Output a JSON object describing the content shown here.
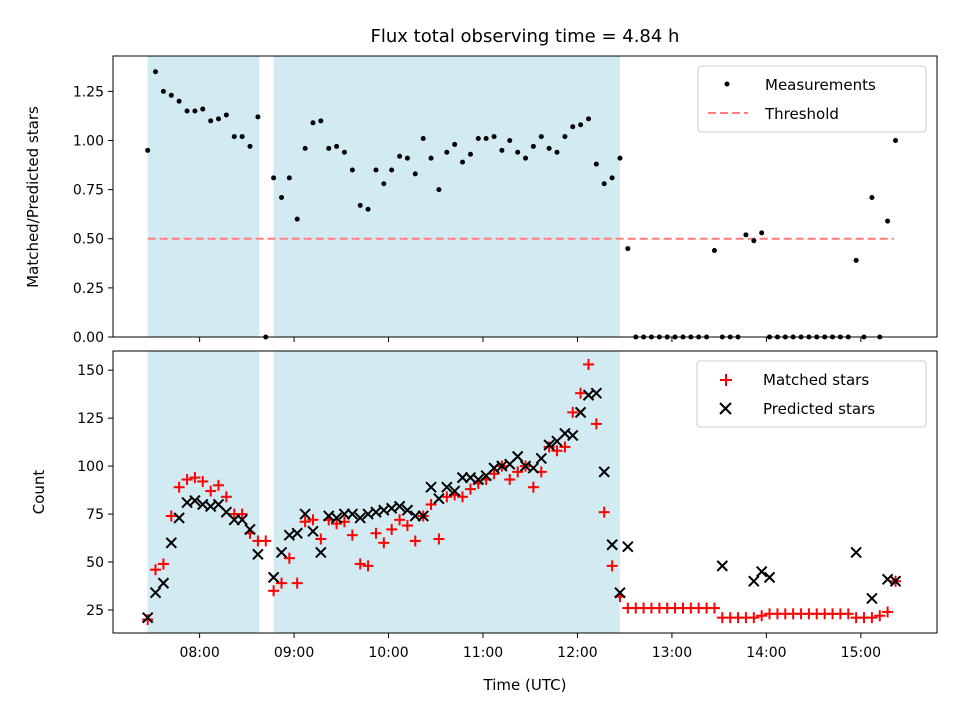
{
  "chart_data": [
    {
      "type": "scatter",
      "title": "Flux total observing time = 4.84 h",
      "xlabel": "",
      "ylabel": "Matched/Predicted stars",
      "xlim_hours": [
        7.083,
        15.806
      ],
      "ylim": [
        0,
        1.43
      ],
      "yticks": [
        0,
        0.25,
        0.5,
        0.75,
        1.0,
        1.25
      ],
      "ytick_labels": [
        "0.00",
        "0.25",
        "0.50",
        "0.75",
        "1.00",
        "1.25"
      ],
      "observing_intervals_hours": [
        [
          7.45,
          8.633
        ],
        [
          8.783,
          12.45
        ]
      ],
      "shade_color": "#add8e6",
      "threshold": {
        "label": "Threshold",
        "value": 0.5,
        "x_range_hours": [
          7.45,
          15.35
        ],
        "color": "#ff7f7f"
      },
      "legend": {
        "position": "top-right",
        "entries": [
          "Measurements",
          "Threshold"
        ]
      },
      "series": [
        {
          "name": "Measurements",
          "marker": "dot",
          "color": "#000000",
          "x_hours": [
            7.45,
            7.533,
            7.617,
            7.7,
            7.783,
            7.867,
            7.95,
            8.033,
            8.117,
            8.2,
            8.283,
            8.367,
            8.45,
            8.533,
            8.617,
            8.7,
            8.783,
            8.867,
            8.95,
            9.033,
            9.117,
            9.2,
            9.283,
            9.367,
            9.45,
            9.533,
            9.617,
            9.7,
            9.783,
            9.867,
            9.95,
            10.033,
            10.117,
            10.2,
            10.283,
            10.367,
            10.45,
            10.533,
            10.617,
            10.7,
            10.783,
            10.867,
            10.95,
            11.033,
            11.117,
            11.2,
            11.283,
            11.367,
            11.45,
            11.533,
            11.617,
            11.7,
            11.783,
            11.867,
            11.95,
            12.033,
            12.117,
            12.2,
            12.283,
            12.367,
            12.45,
            12.533,
            12.617,
            12.7,
            12.783,
            12.867,
            12.95,
            13.033,
            13.117,
            13.2,
            13.283,
            13.367,
            13.45,
            13.533,
            13.617,
            13.7,
            13.783,
            13.867,
            13.95,
            14.033,
            14.117,
            14.2,
            14.283,
            14.367,
            14.45,
            14.533,
            14.617,
            14.7,
            14.783,
            14.867,
            14.95,
            15.033,
            15.117,
            15.2,
            15.283,
            15.367
          ],
          "y": [
            0.95,
            1.35,
            1.25,
            1.23,
            1.2,
            1.15,
            1.15,
            1.16,
            1.1,
            1.11,
            1.13,
            1.02,
            1.02,
            0.97,
            1.12,
            0.0,
            0.81,
            0.71,
            0.81,
            0.6,
            0.96,
            1.09,
            1.1,
            0.96,
            0.97,
            0.94,
            0.85,
            0.67,
            0.65,
            0.85,
            0.78,
            0.85,
            0.92,
            0.91,
            0.83,
            1.01,
            0.91,
            0.75,
            0.94,
            0.98,
            0.89,
            0.93,
            1.01,
            1.01,
            1.02,
            0.95,
            1.0,
            0.94,
            0.91,
            0.97,
            1.02,
            0.96,
            0.94,
            1.02,
            1.07,
            1.08,
            1.11,
            0.88,
            0.78,
            0.81,
            0.91,
            0.45,
            0,
            0,
            0,
            0,
            0,
            0,
            0,
            0,
            0,
            0,
            0.44,
            0,
            0,
            0,
            0.52,
            0.49,
            0.53,
            0,
            0,
            0,
            0,
            0,
            0,
            0,
            0,
            0,
            0,
            0,
            0.39,
            0,
            0.71,
            0,
            0.59,
            1.0
          ]
        }
      ]
    },
    {
      "type": "scatter",
      "title": "",
      "xlabel": "Time (UTC)",
      "ylabel": "Count",
      "xlim_hours": [
        7.083,
        15.806
      ],
      "ylim": [
        13,
        160
      ],
      "yticks": [
        25,
        50,
        75,
        100,
        125,
        150
      ],
      "ytick_labels": [
        "25",
        "50",
        "75",
        "100",
        "125",
        "150"
      ],
      "xticks_hours": [
        8,
        9,
        10,
        11,
        12,
        13,
        14,
        15
      ],
      "xtick_labels": [
        "08:00",
        "09:00",
        "10:00",
        "11:00",
        "12:00",
        "13:00",
        "14:00",
        "15:00"
      ],
      "observing_intervals_hours": [
        [
          7.45,
          8.633
        ],
        [
          8.783,
          12.45
        ]
      ],
      "legend": {
        "position": "top-right",
        "entries": [
          "Matched stars",
          "Predicted stars"
        ]
      },
      "series": [
        {
          "name": "Matched stars",
          "marker": "plus",
          "color": "#ff0000",
          "x_hours": [
            7.45,
            7.533,
            7.617,
            7.7,
            7.783,
            7.867,
            7.95,
            8.033,
            8.117,
            8.2,
            8.283,
            8.367,
            8.45,
            8.533,
            8.617,
            8.7,
            8.783,
            8.867,
            8.95,
            9.033,
            9.117,
            9.2,
            9.283,
            9.367,
            9.45,
            9.533,
            9.617,
            9.7,
            9.783,
            9.867,
            9.95,
            10.033,
            10.117,
            10.2,
            10.283,
            10.367,
            10.45,
            10.533,
            10.617,
            10.7,
            10.783,
            10.867,
            10.95,
            11.033,
            11.117,
            11.2,
            11.283,
            11.367,
            11.45,
            11.533,
            11.617,
            11.7,
            11.783,
            11.867,
            11.95,
            12.033,
            12.117,
            12.2,
            12.283,
            12.367,
            12.45,
            12.533,
            12.617,
            12.7,
            12.783,
            12.867,
            12.95,
            13.033,
            13.117,
            13.2,
            13.283,
            13.367,
            13.45,
            13.533,
            13.617,
            13.7,
            13.783,
            13.867,
            13.95,
            14.033,
            14.117,
            14.2,
            14.283,
            14.367,
            14.45,
            14.533,
            14.617,
            14.7,
            14.783,
            14.867,
            14.95,
            15.033,
            15.117,
            15.2,
            15.283,
            15.367
          ],
          "y": [
            20,
            46,
            49,
            74,
            89,
            93,
            94,
            92,
            87,
            90,
            84,
            75,
            75,
            65,
            61,
            61,
            35,
            39,
            52,
            39,
            71,
            72,
            62,
            72,
            70,
            71,
            64,
            49,
            48,
            65,
            60,
            67,
            72,
            69,
            61,
            74,
            80,
            62,
            84,
            85,
            84,
            88,
            91,
            93,
            96,
            100,
            93,
            97,
            100,
            89,
            97,
            110,
            108,
            110,
            128,
            138,
            153,
            122,
            76,
            48,
            32,
            26,
            26,
            26,
            26,
            26,
            26,
            26,
            26,
            26,
            26,
            26,
            26,
            21,
            21,
            21,
            21,
            21,
            22,
            23,
            23,
            23,
            23,
            23,
            23,
            23,
            23,
            23,
            23,
            23,
            21,
            21,
            21,
            22,
            24,
            40
          ]
        },
        {
          "name": "Predicted stars",
          "marker": "x",
          "color": "#000000",
          "x_hours": [
            7.45,
            7.533,
            7.617,
            7.7,
            7.783,
            7.867,
            7.95,
            8.033,
            8.117,
            8.2,
            8.283,
            8.367,
            8.45,
            8.533,
            8.617,
            8.783,
            8.867,
            8.95,
            9.033,
            9.117,
            9.2,
            9.283,
            9.367,
            9.45,
            9.533,
            9.617,
            9.7,
            9.783,
            9.867,
            9.95,
            10.033,
            10.117,
            10.2,
            10.283,
            10.367,
            10.45,
            10.533,
            10.617,
            10.7,
            10.783,
            10.867,
            10.95,
            11.033,
            11.117,
            11.2,
            11.283,
            11.367,
            11.45,
            11.533,
            11.617,
            11.7,
            11.783,
            11.867,
            11.95,
            12.033,
            12.117,
            12.2,
            12.283,
            12.367,
            12.45,
            12.533,
            13.533,
            13.867,
            13.95,
            14.033,
            14.95,
            15.117,
            15.283,
            15.367
          ],
          "y": [
            21,
            34,
            39,
            60,
            73,
            81,
            82,
            80,
            79,
            80,
            76,
            72,
            72,
            67,
            54,
            42,
            55,
            64,
            65,
            75,
            66,
            55,
            74,
            73,
            75,
            75,
            73,
            75,
            76,
            77,
            78,
            79,
            77,
            74,
            74,
            89,
            83,
            89,
            87,
            94,
            94,
            93,
            95,
            99,
            100,
            101,
            105,
            100,
            99,
            104,
            111,
            113,
            117,
            116,
            128,
            137,
            138,
            97,
            59,
            34,
            58,
            48,
            40,
            45,
            42,
            55,
            31,
            41,
            40
          ]
        }
      ]
    }
  ]
}
